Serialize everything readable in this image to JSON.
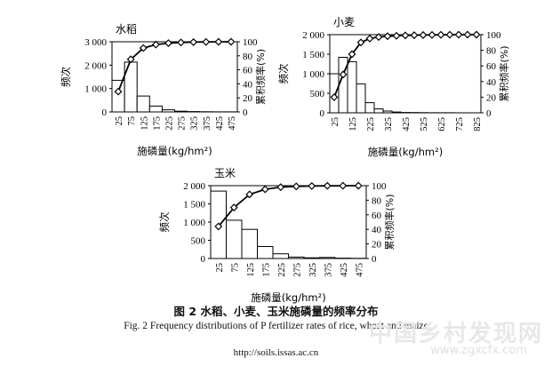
{
  "figure": {
    "caption_cn": "图 2    水稻、小麦、玉米施磷量的频率分布",
    "caption_en": "Fig. 2    Frequency distributions of P fertilizer rates of rice, wheat and maize",
    "url": "http://soils.issas.ac.cn",
    "watermark": "中国乡村发现网",
    "watermark_url": "www.zgxcfx.com"
  },
  "chart_data": [
    {
      "type": "bar",
      "title": "水稻",
      "xlabel": "施磷量(kg/hm²)",
      "ylabel": "频次",
      "y2label": "累积频率(%)",
      "categories": [
        25,
        75,
        125,
        175,
        225,
        275,
        325,
        375,
        425,
        475
      ],
      "x_ticks": [
        "25",
        "75",
        "125",
        "175",
        "225",
        "275",
        "325",
        "375",
        "425",
        "475"
      ],
      "ylim": [
        0,
        3000
      ],
      "y_ticks": [
        "0",
        "1 000",
        "2 000",
        "3 000"
      ],
      "y2lim": [
        0,
        100
      ],
      "y2_ticks": [
        "0",
        "20",
        "40",
        "60",
        "80",
        "100"
      ],
      "series": [
        {
          "values": [
            1350,
            2130,
            680,
            250,
            90,
            30,
            15,
            8,
            5,
            3
          ]
        },
        {
          "values": [
            29,
            75,
            91,
            96,
            98,
            99,
            99.5,
            99.7,
            99.9,
            100
          ]
        }
      ]
    },
    {
      "type": "bar",
      "title": "小麦",
      "xlabel": "施磷量(kg/hm²)",
      "ylabel": "频次",
      "y2label": "累积频率(%)",
      "categories": [
        25,
        75,
        125,
        175,
        225,
        275,
        325,
        375,
        425,
        475,
        525,
        575,
        625,
        675,
        725,
        775,
        825
      ],
      "x_ticks": [
        "25",
        "125",
        "225",
        "325",
        "425",
        "525",
        "625",
        "725",
        "825"
      ],
      "ylim": [
        0,
        2000
      ],
      "y_ticks": [
        "0",
        "500",
        "1 000",
        "1 500",
        "2 000"
      ],
      "y2lim": [
        0,
        100
      ],
      "y2_ticks": [
        "0",
        "20",
        "40",
        "60",
        "80",
        "100"
      ],
      "series": [
        {
          "values": [
            1000,
            1420,
            1310,
            740,
            260,
            100,
            45,
            20,
            10,
            6,
            4,
            3,
            2,
            2,
            1,
            1,
            1
          ]
        },
        {
          "values": [
            20,
            49,
            75,
            90,
            95,
            97,
            98,
            98.5,
            99,
            99.3,
            99.5,
            99.7,
            99.8,
            99.9,
            99.95,
            100,
            100
          ]
        }
      ]
    },
    {
      "type": "bar",
      "title": "玉米",
      "xlabel": "施磷量(kg/hm²)",
      "ylabel": "频次",
      "y2label": "累积频率(%)",
      "categories": [
        25,
        75,
        125,
        175,
        225,
        275,
        325,
        375,
        425,
        475
      ],
      "x_ticks": [
        "25",
        "75",
        "125",
        "175",
        "225",
        "275",
        "325",
        "375",
        "425",
        "475"
      ],
      "ylim": [
        0,
        2000
      ],
      "y_ticks": [
        "0",
        "500",
        "1 000",
        "1 500",
        "2 000"
      ],
      "y2lim": [
        0,
        100
      ],
      "y2_ticks": [
        "0",
        "20",
        "40",
        "60",
        "80",
        "100"
      ],
      "series": [
        {
          "values": [
            1850,
            1050,
            800,
            330,
            130,
            40,
            20,
            30,
            10,
            5
          ]
        },
        {
          "values": [
            44,
            70,
            88,
            95,
            98,
            99,
            99.5,
            99.8,
            99.9,
            100
          ]
        }
      ]
    }
  ]
}
